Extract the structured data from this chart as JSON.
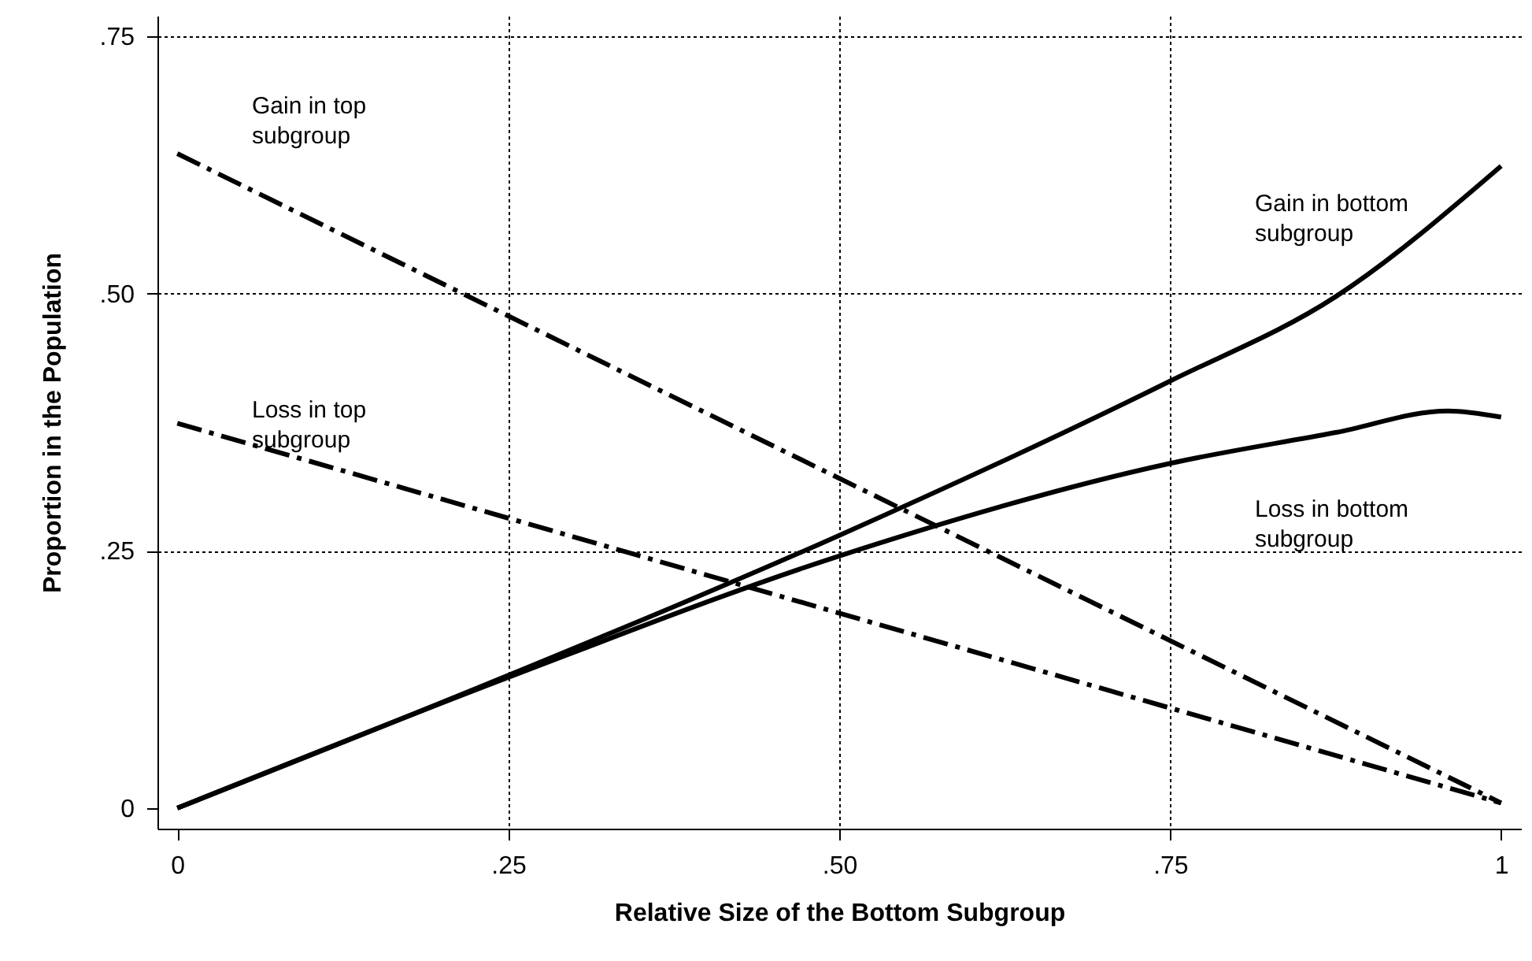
{
  "chart_data": {
    "type": "line",
    "xlabel": "Relative Size of the Bottom Subgroup",
    "ylabel": "Proportion in the Population",
    "xlim": [
      -0.015,
      1.015
    ],
    "ylim": [
      -0.02,
      0.77
    ],
    "xticks": [
      0,
      {
        "value": 0.25,
        "label": ".25"
      },
      {
        "value": 0.5,
        "label": ".50"
      },
      {
        "value": 0.75,
        "label": ".75"
      },
      1
    ],
    "yticks": [
      0,
      {
        "value": 0.25,
        "label": ".25"
      },
      {
        "value": 0.5,
        "label": ".50"
      },
      {
        "value": 0.75,
        "label": ".75"
      }
    ],
    "grid": true,
    "series": [
      {
        "name": "Gain in top subgroup",
        "color": "#000000",
        "line_style": "dashed",
        "x": [
          0,
          1
        ],
        "values": [
          0.636,
          0.005
        ]
      },
      {
        "name": "Loss in top subgroup",
        "color": "#000000",
        "line_style": "dashed",
        "x": [
          0,
          1
        ],
        "values": [
          0.374,
          0.005
        ]
      },
      {
        "name": "Gain in bottom subgroup",
        "color": "#000000",
        "line_style": "solid",
        "x": [
          0,
          0.25,
          0.5,
          0.75,
          0.875,
          1
        ],
        "values": [
          0,
          0.129,
          0.265,
          0.415,
          0.497,
          0.624
        ]
      },
      {
        "name": "Loss in bottom subgroup",
        "color": "#000000",
        "line_style": "solid",
        "x": [
          0,
          0.25,
          0.5,
          0.75,
          0.875,
          0.96,
          1
        ],
        "values": [
          0,
          0.127,
          0.245,
          0.335,
          0.365,
          0.386,
          0.38
        ]
      }
    ]
  }
}
